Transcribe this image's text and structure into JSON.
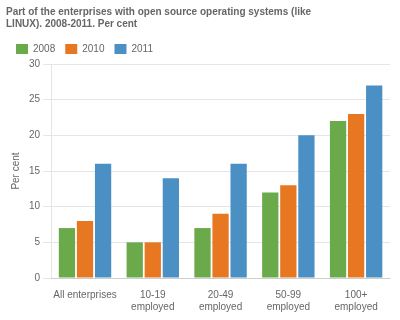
{
  "chart_data": {
    "type": "bar",
    "title": "Part of the enterprises with open source operating systems (like\nLINUX). 2008-2011. Per cent",
    "ylabel": "Per cent",
    "categories": [
      "All enterprises",
      "10-19\nemployed",
      "20-49\nemployed",
      "50-99\nemployed",
      "100+\nemployed"
    ],
    "series": [
      {
        "name": "2008",
        "color": "#6aaa4a",
        "values": [
          7,
          5,
          7,
          12,
          22
        ]
      },
      {
        "name": "2010",
        "color": "#e87722",
        "values": [
          8,
          5,
          9,
          13,
          23
        ]
      },
      {
        "name": "2011",
        "color": "#4a90c4",
        "values": [
          16,
          14,
          16,
          20,
          27
        ]
      }
    ],
    "ylim": [
      0,
      30
    ],
    "yticks": [
      0,
      5,
      10,
      15,
      20,
      25,
      30
    ],
    "grid": true,
    "legend": "upper left"
  }
}
